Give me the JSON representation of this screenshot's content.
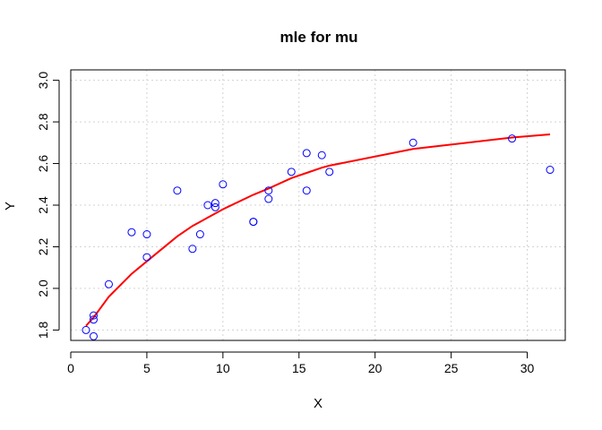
{
  "chart_data": {
    "type": "scatter",
    "title": "mle for mu",
    "xlabel": "X",
    "ylabel": "Y",
    "xlim": [
      0,
      32.5
    ],
    "ylim": [
      1.75,
      3.05
    ],
    "grid": true,
    "x_ticks": [
      0,
      5,
      10,
      15,
      20,
      25,
      30
    ],
    "y_ticks": [
      1.8,
      2.0,
      2.2,
      2.4,
      2.6,
      2.8,
      3.0
    ],
    "x_tick_labels": [
      "0",
      "5",
      "10",
      "15",
      "20",
      "25",
      "30"
    ],
    "y_tick_labels": [
      "1.8",
      "2.0",
      "2.2",
      "2.4",
      "2.6",
      "2.8",
      "3.0"
    ],
    "colors": {
      "points": "#0000ff",
      "fit": "#ff0000",
      "grid": "#d3d3d3"
    },
    "points": [
      {
        "x": 1.0,
        "y": 1.8
      },
      {
        "x": 1.5,
        "y": 1.85
      },
      {
        "x": 1.5,
        "y": 1.87
      },
      {
        "x": 1.5,
        "y": 1.77
      },
      {
        "x": 2.5,
        "y": 2.02
      },
      {
        "x": 4.0,
        "y": 2.27
      },
      {
        "x": 5.0,
        "y": 2.15
      },
      {
        "x": 5.0,
        "y": 2.26
      },
      {
        "x": 7.0,
        "y": 2.47
      },
      {
        "x": 8.0,
        "y": 2.19
      },
      {
        "x": 8.5,
        "y": 2.26
      },
      {
        "x": 9.0,
        "y": 2.4
      },
      {
        "x": 9.5,
        "y": 2.39
      },
      {
        "x": 9.5,
        "y": 2.41
      },
      {
        "x": 10.0,
        "y": 2.5
      },
      {
        "x": 12.0,
        "y": 2.32
      },
      {
        "x": 12.0,
        "y": 2.32
      },
      {
        "x": 13.0,
        "y": 2.43
      },
      {
        "x": 13.0,
        "y": 2.47
      },
      {
        "x": 14.5,
        "y": 2.56
      },
      {
        "x": 15.5,
        "y": 2.65
      },
      {
        "x": 15.5,
        "y": 2.47
      },
      {
        "x": 16.5,
        "y": 2.64
      },
      {
        "x": 17.0,
        "y": 2.56
      },
      {
        "x": 22.5,
        "y": 2.7
      },
      {
        "x": 29.0,
        "y": 2.72
      },
      {
        "x": 31.5,
        "y": 2.57
      }
    ],
    "fit_line": {
      "x": [
        1.0,
        1.5,
        2.5,
        4.0,
        5.0,
        7.0,
        8.0,
        8.5,
        9.0,
        9.5,
        10.0,
        12.0,
        13.0,
        14.5,
        15.5,
        16.5,
        17.0,
        22.5,
        29.0,
        31.5
      ],
      "y": [
        1.82,
        1.86,
        1.96,
        2.07,
        2.13,
        2.25,
        2.3,
        2.32,
        2.34,
        2.36,
        2.38,
        2.45,
        2.48,
        2.53,
        2.555,
        2.58,
        2.59,
        2.67,
        2.725,
        2.74
      ]
    }
  }
}
